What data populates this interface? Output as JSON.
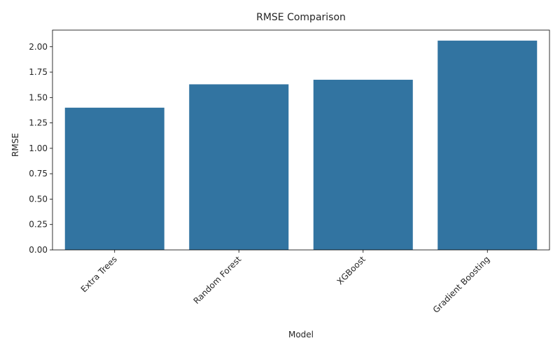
{
  "chart_data": {
    "type": "bar",
    "title": "RMSE Comparison",
    "xlabel": "Model",
    "ylabel": "RMSE",
    "categories": [
      "Extra Trees",
      "Random Forest",
      "XGBoost",
      "Gradient Boosting"
    ],
    "values": [
      1.4,
      1.63,
      1.675,
      2.06
    ],
    "ylim": [
      0,
      2.1637
    ],
    "yticks": [
      "0.00",
      "0.25",
      "0.50",
      "0.75",
      "1.00",
      "1.25",
      "1.50",
      "1.75",
      "2.00"
    ],
    "bar_color": "#3274a1",
    "grid": false,
    "legend": "none"
  }
}
